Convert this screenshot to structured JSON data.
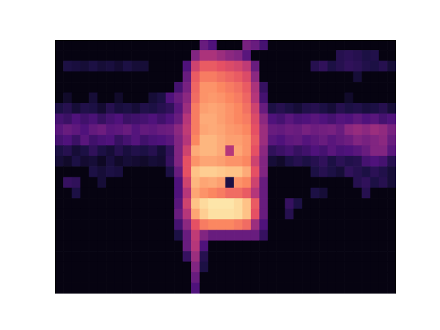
{
  "chart_data": {
    "type": "heatmap",
    "tick_labels": false,
    "zlim": [
      -80,
      0
    ],
    "z": [
      [
        -78,
        -78,
        -78,
        -78,
        -78,
        -78,
        -78,
        -78,
        -78,
        -78,
        -78,
        -78,
        -78,
        -78,
        -78,
        -78,
        -60,
        -78,
        -78,
        -78,
        -78,
        -78,
        -78,
        -78,
        -78,
        -78,
        -78,
        -78,
        -78,
        -78,
        -78,
        -78,
        -78,
        -78,
        -78,
        -78,
        -78,
        -78,
        -78,
        -78
      ],
      [
        -78,
        -78,
        -78,
        -78,
        -78,
        -78,
        -78,
        -78,
        -78,
        -78,
        -78,
        -78,
        -78,
        -78,
        -78,
        -78,
        -55,
        -78,
        -78,
        -78,
        -78,
        -78,
        -78,
        -78,
        -78,
        -78,
        -78,
        -78,
        -78,
        -78,
        -78,
        -78,
        -78,
        -78,
        -78,
        -78,
        -78,
        -78,
        -78,
        -78
      ],
      [
        -78,
        -78,
        -78,
        -78,
        -78,
        -78,
        -78,
        -78,
        -78,
        -78,
        -78,
        -78,
        -78,
        -78,
        -78,
        -78,
        -50,
        -70,
        -78,
        -78,
        -78,
        -78,
        -78,
        -78,
        -78,
        -78,
        -78,
        -78,
        -78,
        -78,
        -78,
        -78,
        -78,
        -78,
        -78,
        -78,
        -78,
        -78,
        -78,
        -78
      ],
      [
        -78,
        -78,
        -78,
        -78,
        -78,
        -78,
        -78,
        -78,
        -78,
        -78,
        -78,
        -78,
        -78,
        -78,
        -78,
        -65,
        -45,
        -68,
        -78,
        -78,
        -78,
        -78,
        -78,
        -78,
        -78,
        -78,
        -78,
        -78,
        -78,
        -78,
        -78,
        -78,
        -78,
        -78,
        -78,
        -78,
        -78,
        -78,
        -78,
        -78
      ],
      [
        -78,
        -78,
        -78,
        -78,
        -78,
        -78,
        -78,
        -78,
        -78,
        -78,
        -78,
        -78,
        -78,
        -78,
        -78,
        -55,
        -40,
        -60,
        -78,
        -78,
        -78,
        -78,
        -78,
        -78,
        -78,
        -78,
        -78,
        -78,
        -78,
        -78,
        -78,
        -78,
        -78,
        -78,
        -78,
        -78,
        -78,
        -78,
        -78,
        -78
      ],
      [
        -78,
        -78,
        -78,
        -78,
        -78,
        -78,
        -78,
        -78,
        -78,
        -78,
        -78,
        -78,
        -78,
        -78,
        -70,
        -55,
        -38,
        -50,
        -55,
        -55,
        -55,
        -55,
        -55,
        -55,
        -65,
        -78,
        -78,
        -78,
        -78,
        -78,
        -78,
        -78,
        -78,
        -78,
        -78,
        -78,
        -78,
        -78,
        -78,
        -78
      ],
      [
        -78,
        -78,
        -78,
        -78,
        -78,
        -78,
        -78,
        -78,
        -78,
        -78,
        -78,
        -78,
        -78,
        -78,
        -62,
        -48,
        -30,
        -22,
        -20,
        -20,
        -20,
        -22,
        -25,
        -45,
        -60,
        -78,
        -78,
        -78,
        -78,
        -78,
        -78,
        -78,
        -78,
        -78,
        -78,
        -78,
        -78,
        -78,
        -78,
        -78
      ],
      [
        -78,
        -78,
        -78,
        -78,
        -78,
        -78,
        -78,
        -78,
        -78,
        -78,
        -78,
        -78,
        -78,
        -78,
        -55,
        -40,
        -15,
        -8,
        -5,
        -5,
        -5,
        -6,
        -10,
        -30,
        -55,
        -78,
        -78,
        -68,
        -78,
        -78,
        -78,
        -78,
        -78,
        -78,
        -78,
        -78,
        -78,
        -78,
        -78,
        -78
      ],
      [
        -78,
        -78,
        -78,
        -78,
        -78,
        -78,
        -78,
        -78,
        -78,
        -78,
        -78,
        -78,
        -78,
        -78,
        -58,
        -35,
        -10,
        -6,
        -4,
        -4,
        -4,
        -6,
        -10,
        -28,
        -55,
        -78,
        -78,
        -65,
        -70,
        -78,
        -78,
        -78,
        -78,
        -78,
        -78,
        -78,
        -78,
        -78,
        -78,
        -78
      ],
      [
        -78,
        -78,
        -70,
        -78,
        -78,
        -78,
        -78,
        -78,
        -78,
        -78,
        -78,
        -78,
        -78,
        -78,
        -60,
        -40,
        -15,
        -18,
        -20,
        -22,
        -25,
        -25,
        -28,
        -40,
        -55,
        -78,
        -78,
        -78,
        -78,
        -78,
        -70,
        -72,
        -78,
        -78,
        -78,
        -78,
        -68,
        -78,
        -78,
        -78
      ],
      [
        -78,
        -65,
        -66,
        -78,
        -78,
        -72,
        -78,
        -78,
        -78,
        -78,
        -78,
        -78,
        -78,
        -78,
        -60,
        -35,
        -12,
        -15,
        -14,
        -16,
        -70,
        -18,
        -20,
        -35,
        -55,
        -78,
        -78,
        -78,
        -78,
        -78,
        -78,
        -78,
        -78,
        -78,
        -78,
        -68,
        -66,
        -70,
        -68,
        -72
      ],
      [
        -78,
        -78,
        -78,
        -78,
        -70,
        -72,
        -70,
        -71,
        -78,
        -78,
        -78,
        -78,
        -78,
        -70,
        -55,
        -30,
        -10,
        -8,
        -8,
        -9,
        -10,
        -10,
        -14,
        -30,
        -50,
        -78,
        -78,
        -78,
        -78,
        -78,
        -70,
        -68,
        -70,
        -72,
        -66,
        -68,
        -70,
        -67,
        -69,
        -72
      ],
      [
        -72,
        -74,
        -70,
        -73,
        -72,
        -75,
        -71,
        -74,
        -72,
        -73,
        -74,
        -72,
        -73,
        -65,
        -50,
        -30,
        -18,
        -15,
        -15,
        -16,
        -18,
        -18,
        -20,
        -35,
        -50,
        -72,
        -74,
        -70,
        -68,
        -70,
        -68,
        -66,
        -70,
        -67,
        -69,
        -68,
        -62,
        -60,
        -62,
        -68
      ],
      [
        -70,
        -68,
        -72,
        -70,
        -66,
        -70,
        -72,
        -68,
        -71,
        -69,
        -70,
        -68,
        -72,
        -66,
        -50,
        -35,
        -14,
        -12,
        -12,
        -14,
        -40,
        -15,
        -18,
        -30,
        -48,
        -66,
        -64,
        -62,
        -65,
        -63,
        -60,
        -62,
        -58,
        -61,
        -60,
        -58,
        -55,
        -50,
        -50,
        -58
      ],
      [
        -62,
        -60,
        -64,
        -58,
        -63,
        -61,
        -60,
        -65,
        -62,
        -59,
        -63,
        -61,
        -60,
        -58,
        -50,
        -40,
        -20,
        -12,
        -12,
        -14,
        -16,
        -16,
        -18,
        -28,
        -45,
        -58,
        -60,
        -57,
        -56,
        -59,
        -57,
        -55,
        -58,
        -56,
        -54,
        -50,
        -52,
        -50,
        -48,
        -55
      ],
      [
        -58,
        -55,
        -57,
        -60,
        -56,
        -54,
        -58,
        -57,
        -55,
        -59,
        -56,
        -57,
        -55,
        -54,
        -48,
        -38,
        -22,
        -15,
        -14,
        -15,
        -17,
        -18,
        -20,
        -30,
        -45,
        -55,
        -56,
        -54,
        -55,
        -52,
        -54,
        -53,
        -52,
        -55,
        -48,
        -46,
        -48,
        -45,
        -47,
        -52
      ],
      [
        -62,
        -64,
        -60,
        -63,
        -61,
        -65,
        -62,
        -60,
        -64,
        -63,
        -62,
        -60,
        -63,
        -60,
        -55,
        -40,
        -22,
        -14,
        -14,
        -16,
        -18,
        -20,
        -22,
        -32,
        -48,
        -60,
        -62,
        -58,
        -61,
        -60,
        -58,
        -60,
        -62,
        -59,
        -60,
        -57,
        -60,
        -58,
        -62,
        -60
      ],
      [
        -70,
        -68,
        -72,
        -69,
        -70,
        -73,
        -68,
        -71,
        -70,
        -72,
        -69,
        -70,
        -68,
        -66,
        -58,
        -45,
        -22,
        -16,
        -15,
        -16,
        -18,
        -20,
        -24,
        -35,
        -55,
        -70,
        -68,
        -70,
        -72,
        -69,
        -68,
        -70,
        -72,
        -68,
        -70,
        -69,
        -71,
        -70,
        -68,
        -72
      ],
      [
        -78,
        -74,
        -78,
        -78,
        -72,
        -78,
        -78,
        -74,
        -78,
        -78,
        -78,
        -72,
        -70,
        -60,
        -55,
        -48,
        -25,
        -18,
        -17,
        -18,
        -20,
        -22,
        -26,
        -40,
        -62,
        -78,
        -78,
        -78,
        -78,
        -78,
        -78,
        -78,
        -78,
        -78,
        -74,
        -78,
        -78,
        -78,
        -78,
        -78
      ],
      [
        -78,
        -78,
        -78,
        -78,
        -78,
        -78,
        -78,
        -78,
        -78,
        -78,
        -78,
        -78,
        -78,
        -78,
        -62,
        -52,
        -26,
        -18,
        -18,
        -20,
        -22,
        -24,
        -28,
        -42,
        -65,
        -78,
        -78,
        -78,
        -78,
        -78,
        -78,
        -78,
        -78,
        -78,
        -78,
        -78,
        -78,
        -78,
        -78,
        -78
      ],
      [
        -78,
        -78,
        -78,
        -78,
        -78,
        -78,
        -78,
        -78,
        -78,
        -78,
        -78,
        -78,
        -78,
        -78,
        -78,
        -55,
        -28,
        -22,
        -22,
        -24,
        -26,
        -28,
        -32,
        -48,
        -78,
        -78,
        -78,
        -78,
        -78,
        -78,
        -78,
        -78,
        -78,
        -78,
        -78,
        -72,
        -78,
        -78,
        -78,
        -78
      ],
      [
        -78,
        -70,
        -71,
        -72,
        -70,
        -72,
        -71,
        -73,
        -70,
        -72,
        -72,
        -78,
        -78,
        -78,
        -78,
        -60,
        -35,
        -28,
        -28,
        -30,
        -32,
        -34,
        -38,
        -55,
        -78,
        -78,
        -78,
        -78,
        -78,
        -78,
        -68,
        -66,
        -70,
        -68,
        -66,
        -67,
        -69,
        -70,
        -68,
        -72
      ],
      [
        -78,
        -78,
        -78,
        -78,
        -78,
        -78,
        -78,
        -78,
        -78,
        -78,
        -78,
        -78,
        -78,
        -78,
        -78,
        -78,
        -50,
        -42,
        -42,
        -45,
        -48,
        -50,
        -58,
        -78,
        -78,
        -78,
        -78,
        -78,
        -78,
        -78,
        -78,
        -78,
        -78,
        -68,
        -67,
        -68,
        -70,
        -69,
        -78,
        -78
      ],
      [
        -78,
        -78,
        -78,
        -78,
        -78,
        -78,
        -78,
        -78,
        -78,
        -78,
        -78,
        -78,
        -78,
        -78,
        -78,
        -78,
        -78,
        -55,
        -60,
        -78,
        -78,
        -78,
        -52,
        -55,
        -62,
        -78,
        -78,
        -78,
        -78,
        -78,
        -78,
        -78,
        -78,
        -78,
        -78,
        -78,
        -78,
        -78,
        -78,
        -78
      ]
    ]
  }
}
